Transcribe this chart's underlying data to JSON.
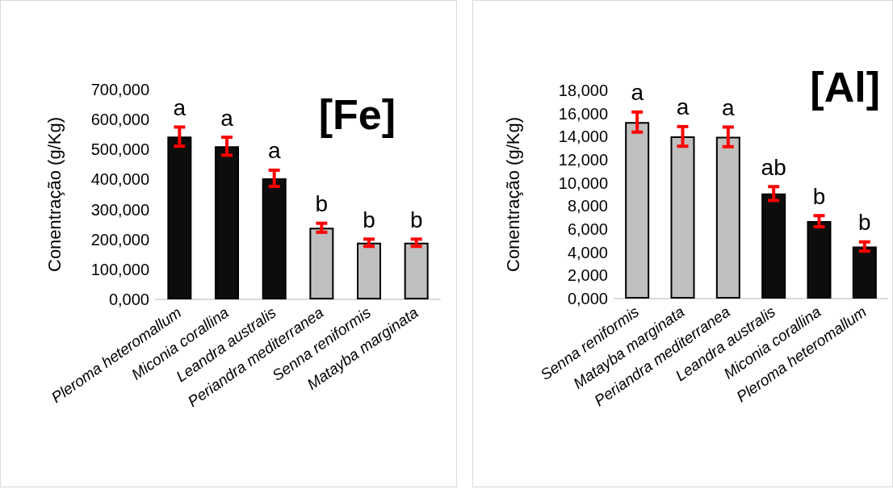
{
  "chart_data": [
    {
      "type": "bar",
      "title": "[Fe]",
      "ylabel": "Conentração (g/Kg)",
      "categories": [
        "Pleroma heteromallum",
        "Miconia corallina",
        "Leandra australis",
        "Periandra mediterranea",
        "Senna reniformis",
        "Matayba marginata"
      ],
      "values": [
        543,
        511,
        404,
        239,
        189,
        189
      ],
      "colors": [
        "#0d0d0d",
        "#0d0d0d",
        "#0d0d0d",
        "#bfbfbf",
        "#bfbfbf",
        "#bfbfbf"
      ],
      "errors": [
        32,
        30,
        27,
        15,
        12,
        12
      ],
      "ylim": [
        0,
        700
      ],
      "yticks": [
        {
          "value": 0,
          "label": "0,000"
        },
        {
          "value": 100,
          "label": "100,000"
        },
        {
          "value": 200,
          "label": "200,000"
        },
        {
          "value": 300,
          "label": "300,000"
        },
        {
          "value": 400,
          "label": "400,000"
        },
        {
          "value": 500,
          "label": "500,000"
        },
        {
          "value": 600,
          "label": "600,000"
        },
        {
          "value": 700,
          "label": "700,000"
        }
      ],
      "annotations": [
        "a",
        "a",
        "a",
        "b",
        "b",
        "b"
      ],
      "grid": false
    },
    {
      "type": "bar",
      "title": "[Al]",
      "ylabel": "Conentração (g/Kg)",
      "categories": [
        "Senna reniformis",
        "Matayba marginata",
        "Periandra mediterranea",
        "Leandra australis",
        "Miconia corallina",
        "Pleroma heteromallum"
      ],
      "values": [
        15.26,
        14.02,
        13.98,
        9.08,
        6.69,
        4.5
      ],
      "colors": [
        "#bfbfbf",
        "#bfbfbf",
        "#bfbfbf",
        "#0d0d0d",
        "#0d0d0d",
        "#0d0d0d"
      ],
      "errors": [
        0.87,
        0.85,
        0.85,
        0.6,
        0.48,
        0.4
      ],
      "ylim": [
        0,
        18
      ],
      "yticks": [
        {
          "value": 0,
          "label": "0,000"
        },
        {
          "value": 2,
          "label": "2,000"
        },
        {
          "value": 4,
          "label": "4,000"
        },
        {
          "value": 6,
          "label": "6,000"
        },
        {
          "value": 8,
          "label": "8,000"
        },
        {
          "value": 10,
          "label": "10,000"
        },
        {
          "value": 12,
          "label": "12,000"
        },
        {
          "value": 14,
          "label": "14,000"
        },
        {
          "value": 16,
          "label": "16,000"
        },
        {
          "value": 18,
          "label": "18,000"
        }
      ],
      "annotations": [
        "a",
        "a",
        "a",
        "ab",
        "b",
        "b"
      ],
      "grid": false
    }
  ]
}
